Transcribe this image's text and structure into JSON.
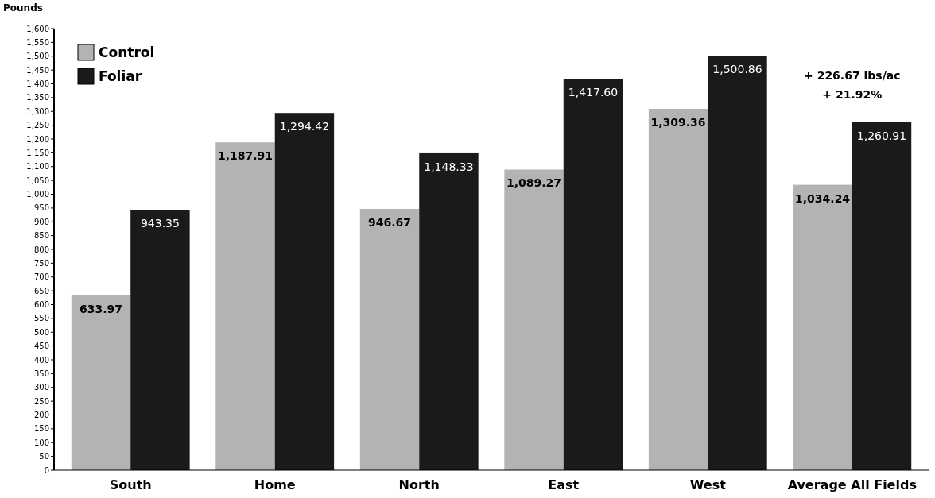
{
  "chart_data": {
    "type": "bar",
    "ylabel": "Pounds",
    "categories": [
      "South",
      "Home",
      "North",
      "East",
      "West",
      "Average All Fields"
    ],
    "series": [
      {
        "name": "Control",
        "color": "#b3b3b3",
        "values": [
          633.97,
          1187.91,
          946.67,
          1089.27,
          1309.36,
          1034.24
        ],
        "value_labels": [
          "633.97",
          "1,187.91",
          "946.67",
          "1,089.27",
          "1,309.36",
          "1,034.24"
        ]
      },
      {
        "name": "Foliar",
        "color": "#1a1a1a",
        "values": [
          943.35,
          1294.42,
          1148.33,
          1417.6,
          1500.86,
          1260.91
        ],
        "value_labels": [
          "943.35",
          "1,294.42",
          "1,148.33",
          "1,417.60",
          "1,500.86",
          "1,260.91"
        ]
      }
    ],
    "ylim": [
      0,
      1600
    ],
    "yticks": [
      0,
      50,
      100,
      150,
      200,
      250,
      300,
      350,
      400,
      450,
      500,
      550,
      600,
      650,
      700,
      750,
      800,
      850,
      900,
      950,
      {
        "value": 1000,
        "label": "1,000"
      },
      {
        "value": 1050,
        "label": "1,050"
      },
      {
        "value": 1100,
        "label": "1,100"
      },
      {
        "value": 1150,
        "label": "1,150"
      },
      {
        "value": 1200,
        "label": "1,200"
      },
      {
        "value": 1250,
        "label": "1,250"
      },
      {
        "value": 1300,
        "label": "1,300"
      },
      {
        "value": 1350,
        "label": "1,350"
      },
      {
        "value": 1400,
        "label": "1,400"
      },
      {
        "value": 1450,
        "label": "1,450"
      },
      {
        "value": 1500,
        "label": "1,500"
      },
      {
        "value": 1550,
        "label": "1,550"
      },
      {
        "value": 1600,
        "label": "1,600"
      }
    ],
    "legend": "top left",
    "grid": false,
    "annotations": [
      "+ 226.67 lbs/ac",
      "+ 21.92%"
    ]
  }
}
